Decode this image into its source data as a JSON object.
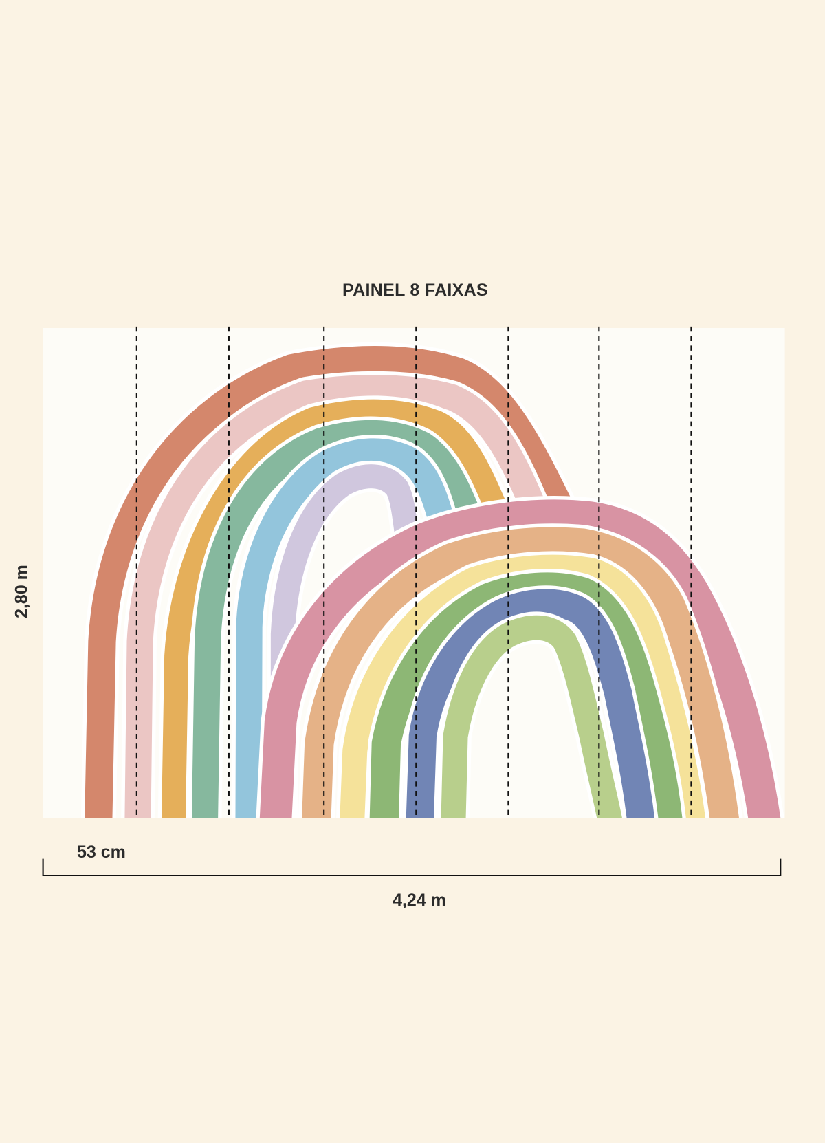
{
  "title": "PAINEL 8 FAIXAS",
  "dimensions": {
    "height": "2,80 m",
    "strip_width": "53 cm",
    "total_width": "4,24 m"
  },
  "strips": 8,
  "colors": {
    "background": "#FBF3E4",
    "panel": "#FDFCF7",
    "rainbow_left": [
      "#D4876C",
      "#EBC6C4",
      "#E5AF5A",
      "#86B89E",
      "#93C5DC",
      "#D0C7DE"
    ],
    "rainbow_right": [
      "#D893A3",
      "#E5B287",
      "#F5E29A",
      "#8DB775",
      "#7185B5",
      "#B8CF8C"
    ]
  }
}
